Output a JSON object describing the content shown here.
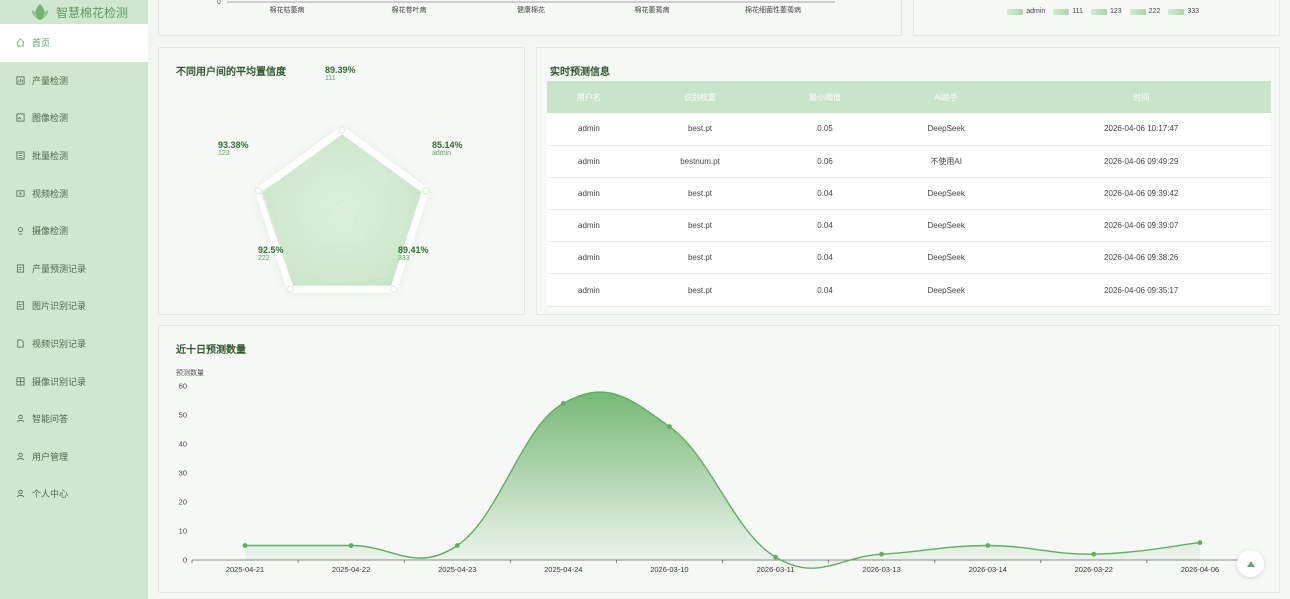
{
  "app": {
    "title": "智慧棉花检测"
  },
  "sidebar": {
    "items": [
      {
        "label": "首页",
        "icon": "home-icon",
        "active": true
      },
      {
        "label": "产量检测",
        "icon": "chart-icon"
      },
      {
        "label": "图像检测",
        "icon": "image-icon"
      },
      {
        "label": "批量检测",
        "icon": "batch-icon"
      },
      {
        "label": "视频检测",
        "icon": "video-icon"
      },
      {
        "label": "摄像检测",
        "icon": "camera-icon"
      },
      {
        "label": "产量预测记录",
        "icon": "record-icon"
      },
      {
        "label": "图片识别记录",
        "icon": "record-icon"
      },
      {
        "label": "视频识别记录",
        "icon": "document-icon"
      },
      {
        "label": "摄像识别记录",
        "icon": "grid-icon"
      },
      {
        "label": "智能问答",
        "icon": "user-icon"
      },
      {
        "label": "用户管理",
        "icon": "user-icon"
      },
      {
        "label": "个人中心",
        "icon": "user-icon"
      }
    ]
  },
  "top_bar_chart": {
    "zero_label": "0",
    "categories": [
      "棉花枯萎病",
      "棉花卷叶病",
      "健康棉花",
      "棉花萎蔫病",
      "棉花细菌性萎蔫病"
    ]
  },
  "top_legend": {
    "items": [
      "admin",
      "111",
      "123",
      "222",
      "333"
    ]
  },
  "radar": {
    "title": "不同用户间的平均置信度",
    "indicators": [
      {
        "name": "111",
        "value": "89.39%",
        "v": 89.39
      },
      {
        "name": "admin",
        "value": "85.14%",
        "v": 85.14
      },
      {
        "name": "333",
        "value": "89.41%",
        "v": 89.41
      },
      {
        "name": "222",
        "value": "92.5%",
        "v": 92.5
      },
      {
        "name": "123",
        "value": "93.38%",
        "v": 93.38
      }
    ]
  },
  "realtime": {
    "title": "实时预测信息",
    "columns": [
      "用户名",
      "识别权重",
      "最小阈值",
      "AI助手",
      "时间"
    ],
    "rows": [
      [
        "admin",
        "best.pt",
        "0.05",
        "DeepSeek",
        "2026-04-06 10:17:47"
      ],
      [
        "admin",
        "bestnum.pt",
        "0.06",
        "不使用AI",
        "2026-04-06 09:49:29"
      ],
      [
        "admin",
        "best.pt",
        "0.04",
        "DeepSeek",
        "2026-04-06 09:39:42"
      ],
      [
        "admin",
        "best.pt",
        "0.04",
        "DeepSeek",
        "2026-04-06 09:39:07"
      ],
      [
        "admin",
        "best.pt",
        "0.04",
        "DeepSeek",
        "2026-04-06 09:38:26"
      ],
      [
        "admin",
        "best.pt",
        "0.04",
        "DeepSeek",
        "2026-04-06 09:35:17"
      ]
    ]
  },
  "chart_data": {
    "type": "area",
    "title": "近十日预测数量",
    "ylabel": "预测数量",
    "xlabel": "",
    "ylim": [
      0,
      60
    ],
    "yticks": [
      0,
      10,
      20,
      30,
      40,
      50,
      60
    ],
    "categories": [
      "2025-04-21",
      "2025-04-22",
      "2025-04-23",
      "2025-04-24",
      "2026-03-10",
      "2026-03-11",
      "2026-03-13",
      "2026-03-14",
      "2026-03-22",
      "2026-04-06"
    ],
    "values": [
      5,
      5,
      5,
      54,
      46,
      1,
      2,
      5,
      2,
      6
    ],
    "color": "#5fae5f"
  }
}
